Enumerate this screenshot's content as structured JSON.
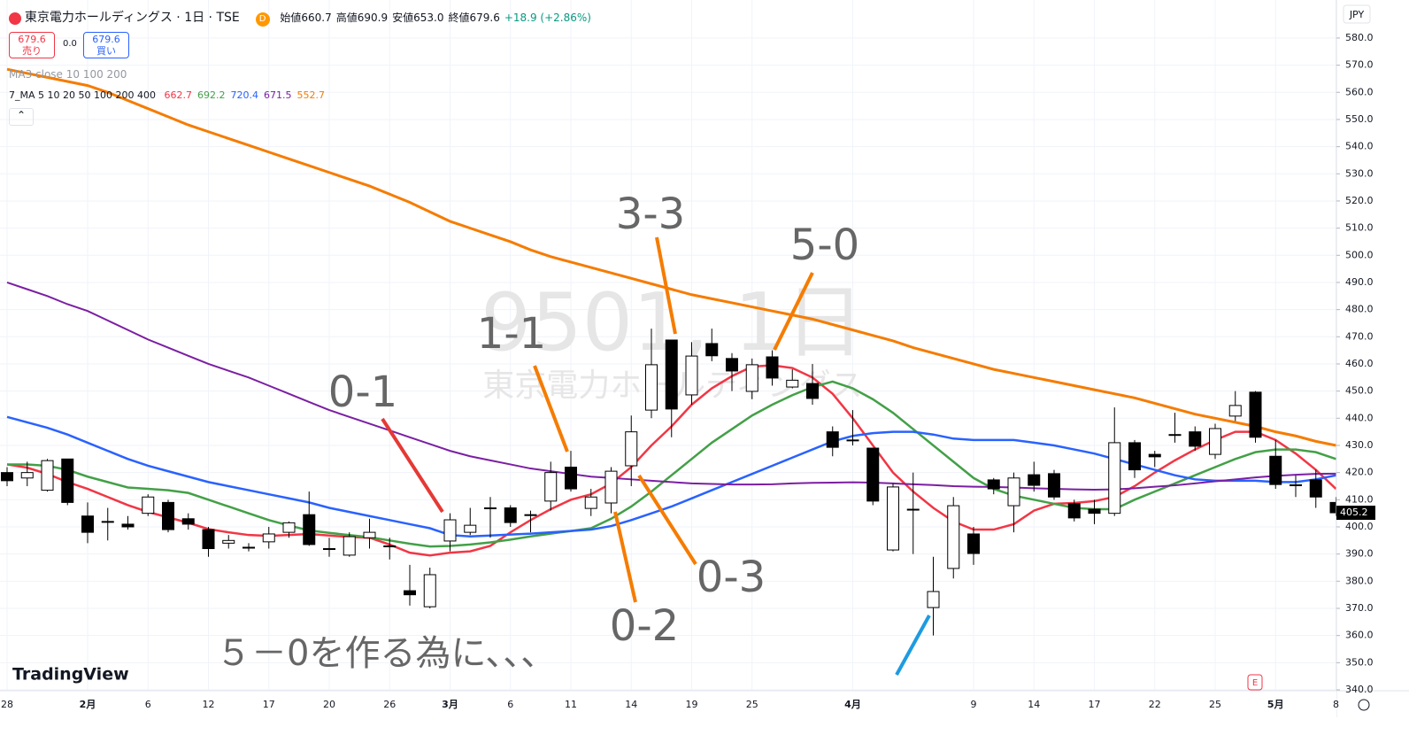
{
  "header": {
    "symbol_title": "東京電力ホールディングス · 1日 · TSE",
    "badge": "D",
    "ohlc": [
      "始値660.7",
      "高値690.9",
      "安値653.0",
      "終値679.6",
      "+18.9 (+2.86%)"
    ],
    "sell_price": "679.6",
    "sell_label": "売り",
    "spread": "0.0",
    "buy_price": "679.6",
    "buy_label": "買い",
    "indicator1": "MA3 close 10 100 200",
    "indicator2": "7_MA 5 10 20 50 100 200 400",
    "indicator2_values": [
      "662.7",
      "692.2",
      "720.4",
      "671.5",
      "552.7"
    ],
    "currency": "JPY",
    "logo": "TradingView",
    "event_marker": "E"
  },
  "chart_data": {
    "type": "candlestick",
    "watermark": [
      "9501, 1日",
      "東京電力ホールディングス"
    ],
    "annotations": [
      "0-1",
      "1-1",
      "3-3",
      "5-0",
      "0-2",
      "0-3",
      "５－0を作る為に、、、"
    ],
    "categories": [
      "28",
      null,
      null,
      null,
      "2月",
      null,
      null,
      "6",
      null,
      null,
      "12",
      null,
      null,
      "17",
      null,
      null,
      "20",
      null,
      null,
      "26",
      null,
      null,
      "3月",
      null,
      null,
      "6",
      null,
      null,
      "11",
      null,
      null,
      "14",
      null,
      null,
      "19",
      null,
      null,
      "25",
      null,
      null,
      null,
      null,
      "4月",
      null,
      null,
      null,
      null,
      null,
      "9",
      null,
      null,
      "14",
      null,
      null,
      "17",
      null,
      null,
      "22",
      null,
      null,
      "25",
      null,
      null,
      "5月",
      null,
      null,
      "8"
    ],
    "open": [
      420,
      418,
      413.5,
      425,
      404,
      402,
      401,
      405,
      409,
      403,
      399,
      394,
      392.5,
      394.5,
      398,
      404.5,
      392,
      389.6,
      396,
      393,
      376.5,
      370.6,
      394.8,
      398,
      407,
      407,
      404.5,
      409.5,
      422,
      406.8,
      408.8,
      422.5,
      443,
      468.8,
      448.6,
      467.5,
      462,
      449.9,
      462.6,
      451.5,
      452.8,
      435,
      432,
      429,
      391.5,
      406.5,
      370.3,
      384.7,
      397.4,
      417.3,
      407.8,
      419.2,
      419.6,
      408.5,
      406.5,
      405,
      431,
      426.7,
      434,
      435,
      426.7,
      440.8,
      449.6,
      426,
      415.5,
      417.3,
      409
    ],
    "high": [
      422,
      424,
      425,
      425,
      409,
      407,
      404,
      412,
      410,
      405,
      400,
      397,
      394,
      400,
      402,
      413,
      396,
      398,
      403,
      396,
      386,
      385,
      405,
      407,
      411,
      408,
      406,
      424,
      428,
      414,
      422,
      441,
      473,
      468.8,
      468,
      473,
      464,
      462,
      465,
      458,
      460,
      437,
      443,
      429,
      416,
      420,
      389,
      411,
      400,
      418,
      420,
      424,
      421,
      410,
      410,
      444,
      432,
      428,
      442,
      437,
      438,
      450,
      450,
      432,
      419,
      421,
      411
    ],
    "low": [
      415,
      415,
      413,
      408,
      394,
      395,
      399,
      404,
      398,
      399,
      389,
      392,
      391,
      392,
      396,
      393,
      389,
      389,
      392,
      388,
      371,
      370,
      391,
      397,
      396,
      400,
      398,
      406,
      413,
      404,
      405,
      415,
      440,
      433,
      445,
      461,
      450,
      447,
      452,
      451,
      445,
      426,
      430,
      408,
      391,
      390,
      360,
      381,
      386,
      412,
      398,
      413,
      410,
      402,
      401,
      404,
      418,
      422,
      431,
      428,
      425,
      439,
      431,
      414,
      411,
      407,
      404
    ],
    "close": [
      417,
      420,
      424.4,
      409,
      398,
      402,
      400,
      411,
      399,
      401,
      392,
      395,
      392.5,
      397.4,
      401.5,
      393.5,
      392,
      396.4,
      398,
      393,
      375,
      382.4,
      402.6,
      400.6,
      407,
      401.6,
      404.5,
      420,
      414,
      411,
      420.5,
      435,
      459.7,
      443.4,
      462.9,
      463,
      457.4,
      459.7,
      454.8,
      454,
      447.3,
      429.3,
      432,
      409.5,
      414.7,
      406.5,
      376.2,
      407.8,
      390.2,
      414,
      418,
      415.3,
      411,
      403.3,
      405,
      431,
      421,
      425.8,
      434,
      429.7,
      436.2,
      444.7,
      433,
      415.6,
      415.5,
      411,
      405.2
    ],
    "up_color": "#ffffff",
    "down_color": "#000000",
    "lines": [
      {
        "color": "#f23645",
        "values": [
          423,
          421.8,
          419.5,
          416.5,
          414,
          411,
          408,
          405.5,
          403.5,
          401.5,
          399.2,
          398,
          397,
          396.7,
          397,
          397.4,
          396.8,
          396.3,
          396,
          393.5,
          390.5,
          389.5,
          390.5,
          391,
          393,
          398,
          402.5,
          406.5,
          410,
          412,
          416,
          422,
          430,
          437,
          445,
          451,
          455.5,
          459,
          459.5,
          458.5,
          455,
          449,
          440,
          430,
          420,
          413,
          407,
          402,
          399,
          399,
          401,
          406,
          408.5,
          408.8,
          409.5,
          411,
          415,
          420,
          424.5,
          428.5,
          432,
          435,
          435,
          432,
          427,
          421,
          414
        ]
      },
      {
        "color": "#43a047",
        "values": [
          423,
          423,
          422.5,
          421,
          418.5,
          416.5,
          414.5,
          414,
          413.5,
          412.5,
          410,
          407.5,
          405,
          402.5,
          400.5,
          398.7,
          397.8,
          397,
          396.2,
          395,
          393.8,
          392.8,
          393,
          393.5,
          394.3,
          395.3,
          396.5,
          397.5,
          398.5,
          399.5,
          403,
          407.5,
          413,
          419,
          425,
          431,
          436,
          441,
          445,
          448.5,
          451.5,
          453.5,
          451,
          447,
          442,
          436,
          430,
          424,
          418,
          414,
          411.5,
          410,
          408.5,
          407,
          406.5,
          406.5,
          410,
          413,
          416,
          419,
          422,
          425,
          427.5,
          428.5,
          428.5,
          427.5,
          425
        ]
      },
      {
        "color": "#2962ff",
        "values": [
          440.5,
          438.5,
          436.5,
          434,
          431,
          428,
          425,
          422.5,
          420.5,
          418.5,
          416.5,
          415,
          413.5,
          412,
          410.5,
          409,
          407,
          405.5,
          404,
          402.5,
          401,
          399.5,
          397,
          396.5,
          396.8,
          397.2,
          397.5,
          398,
          398.5,
          399,
          400.3,
          402.5,
          405,
          407.5,
          410.5,
          413.5,
          416.5,
          419.5,
          422.5,
          425.5,
          428.5,
          431.5,
          433.5,
          434.5,
          435,
          435,
          434,
          432.5,
          432,
          432,
          432,
          431,
          430,
          428.5,
          427,
          425,
          423,
          421,
          419,
          417.5,
          417,
          417,
          417,
          416.5,
          416.5,
          417.5,
          419
        ]
      },
      {
        "color": "#7b1fa2",
        "values": [
          490,
          487.5,
          485,
          482,
          479.5,
          476,
          472.5,
          469,
          466,
          463,
          460,
          457.5,
          455,
          452,
          449,
          446,
          443,
          440.5,
          438,
          435.5,
          433,
          430.5,
          428,
          426,
          424.5,
          423,
          421.5,
          420.5,
          419.5,
          418.5,
          418,
          417.5,
          417,
          416.5,
          416,
          415.8,
          415.6,
          415.6,
          415.7,
          416,
          416.2,
          416.3,
          416.4,
          416.3,
          416,
          415.7,
          415.4,
          415,
          414.8,
          414.7,
          414.5,
          414.2,
          414,
          413.8,
          413.7,
          413.8,
          414.2,
          414.8,
          415.3,
          416,
          416.8,
          417.5,
          418.2,
          418.8,
          419.2,
          419.5,
          419.6
        ]
      },
      {
        "color": "#f57c00",
        "values": [
          568.5,
          567,
          565.5,
          564,
          562.5,
          560,
          557,
          554,
          551,
          548,
          545.5,
          543,
          540.5,
          538,
          535.5,
          533,
          530.5,
          528,
          525.5,
          522.5,
          519.5,
          516,
          512.5,
          510,
          507.5,
          505,
          502,
          499.5,
          497.5,
          495.5,
          493.5,
          491.5,
          489.5,
          487.5,
          485.5,
          484,
          482.5,
          481,
          479.5,
          478,
          476.5,
          474.5,
          472.5,
          470.5,
          468.5,
          466,
          464,
          462,
          460,
          458,
          456.5,
          455,
          453.5,
          452,
          450.5,
          449,
          447.5,
          445.5,
          443.5,
          441.5,
          440,
          438.5,
          437,
          435,
          433.5,
          431.5,
          430
        ]
      }
    ],
    "ylim": [
      340,
      594
    ],
    "yticks": [
      {
        "value": 340,
        "label": "340.0"
      },
      {
        "value": 350,
        "label": "350.0"
      },
      {
        "value": 360,
        "label": "360.0"
      },
      {
        "value": 370,
        "label": "370.0"
      },
      {
        "value": 380,
        "label": "380.0"
      },
      {
        "value": 390,
        "label": "390.0"
      },
      {
        "value": 400,
        "label": "400.0"
      },
      {
        "value": 410,
        "label": "410.0"
      },
      {
        "value": 420,
        "label": "420.0"
      },
      {
        "value": 430,
        "label": "430.0"
      },
      {
        "value": 440,
        "label": "440.0"
      },
      {
        "value": 450,
        "label": "450.0"
      },
      {
        "value": 460,
        "label": "460.0"
      },
      {
        "value": 470,
        "label": "470.0"
      },
      {
        "value": 480,
        "label": "480.0"
      },
      {
        "value": 490,
        "label": "490.0"
      },
      {
        "value": 500,
        "label": "500.0"
      },
      {
        "value": 510,
        "label": "510.0"
      },
      {
        "value": 520,
        "label": "520.0"
      },
      {
        "value": 530,
        "label": "530.0"
      },
      {
        "value": 540,
        "label": "540.0"
      },
      {
        "value": 550,
        "label": "550.0"
      },
      {
        "value": 560,
        "label": "560.0"
      },
      {
        "value": 570,
        "label": "570.0"
      },
      {
        "value": 580,
        "label": "580.0"
      }
    ],
    "grid": true
  }
}
